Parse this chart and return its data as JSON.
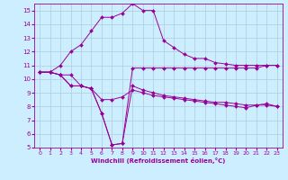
{
  "xlabel": "Windchill (Refroidissement éolien,°C)",
  "background_color": "#cceeff",
  "line_color": "#990099",
  "grid_color": "#aaccdd",
  "xlim": [
    -0.5,
    23.5
  ],
  "ylim": [
    5,
    15.5
  ],
  "yticks": [
    5,
    6,
    7,
    8,
    9,
    10,
    11,
    12,
    13,
    14,
    15
  ],
  "xticks": [
    0,
    1,
    2,
    3,
    4,
    5,
    6,
    7,
    8,
    9,
    10,
    11,
    12,
    13,
    14,
    15,
    16,
    17,
    18,
    19,
    20,
    21,
    22,
    23
  ],
  "series": [
    {
      "x": [
        0,
        1,
        2,
        3,
        4,
        5,
        6,
        7,
        8,
        9,
        10,
        11,
        12,
        13,
        14,
        15,
        16,
        17,
        18,
        19,
        20,
        21,
        22,
        23
      ],
      "y": [
        10.5,
        10.5,
        11.0,
        12.0,
        12.5,
        13.5,
        14.5,
        14.5,
        14.8,
        15.5,
        15.0,
        15.0,
        12.8,
        12.3,
        11.8,
        11.5,
        11.5,
        11.2,
        11.1,
        11.0,
        11.0,
        11.0,
        11.0,
        11.0
      ]
    },
    {
      "x": [
        0,
        1,
        2,
        3,
        4,
        5,
        6,
        7,
        8,
        9,
        10,
        11,
        12,
        13,
        14,
        15,
        16,
        17,
        18,
        19,
        20,
        21,
        22,
        23
      ],
      "y": [
        10.5,
        10.5,
        10.3,
        9.5,
        9.5,
        9.3,
        7.5,
        5.2,
        5.3,
        10.8,
        10.8,
        10.8,
        10.8,
        10.8,
        10.8,
        10.8,
        10.8,
        10.8,
        10.8,
        10.8,
        10.8,
        10.8,
        11.0,
        11.0
      ]
    },
    {
      "x": [
        0,
        1,
        2,
        3,
        4,
        5,
        6,
        7,
        8,
        9,
        10,
        11,
        12,
        13,
        14,
        15,
        16,
        17,
        18,
        19,
        20,
        21,
        22,
        23
      ],
      "y": [
        10.5,
        10.5,
        10.3,
        9.5,
        9.5,
        9.3,
        7.5,
        5.2,
        5.3,
        9.5,
        9.2,
        9.0,
        8.8,
        8.7,
        8.6,
        8.5,
        8.4,
        8.3,
        8.3,
        8.2,
        8.1,
        8.1,
        8.1,
        8.0
      ]
    },
    {
      "x": [
        0,
        1,
        2,
        3,
        4,
        5,
        6,
        7,
        8,
        9,
        10,
        11,
        12,
        13,
        14,
        15,
        16,
        17,
        18,
        19,
        20,
        21,
        22,
        23
      ],
      "y": [
        10.5,
        10.5,
        10.3,
        10.3,
        9.5,
        9.3,
        8.5,
        8.5,
        8.7,
        9.2,
        9.0,
        8.8,
        8.7,
        8.6,
        8.5,
        8.4,
        8.3,
        8.2,
        8.1,
        8.0,
        7.9,
        8.1,
        8.2,
        8.0
      ]
    }
  ]
}
